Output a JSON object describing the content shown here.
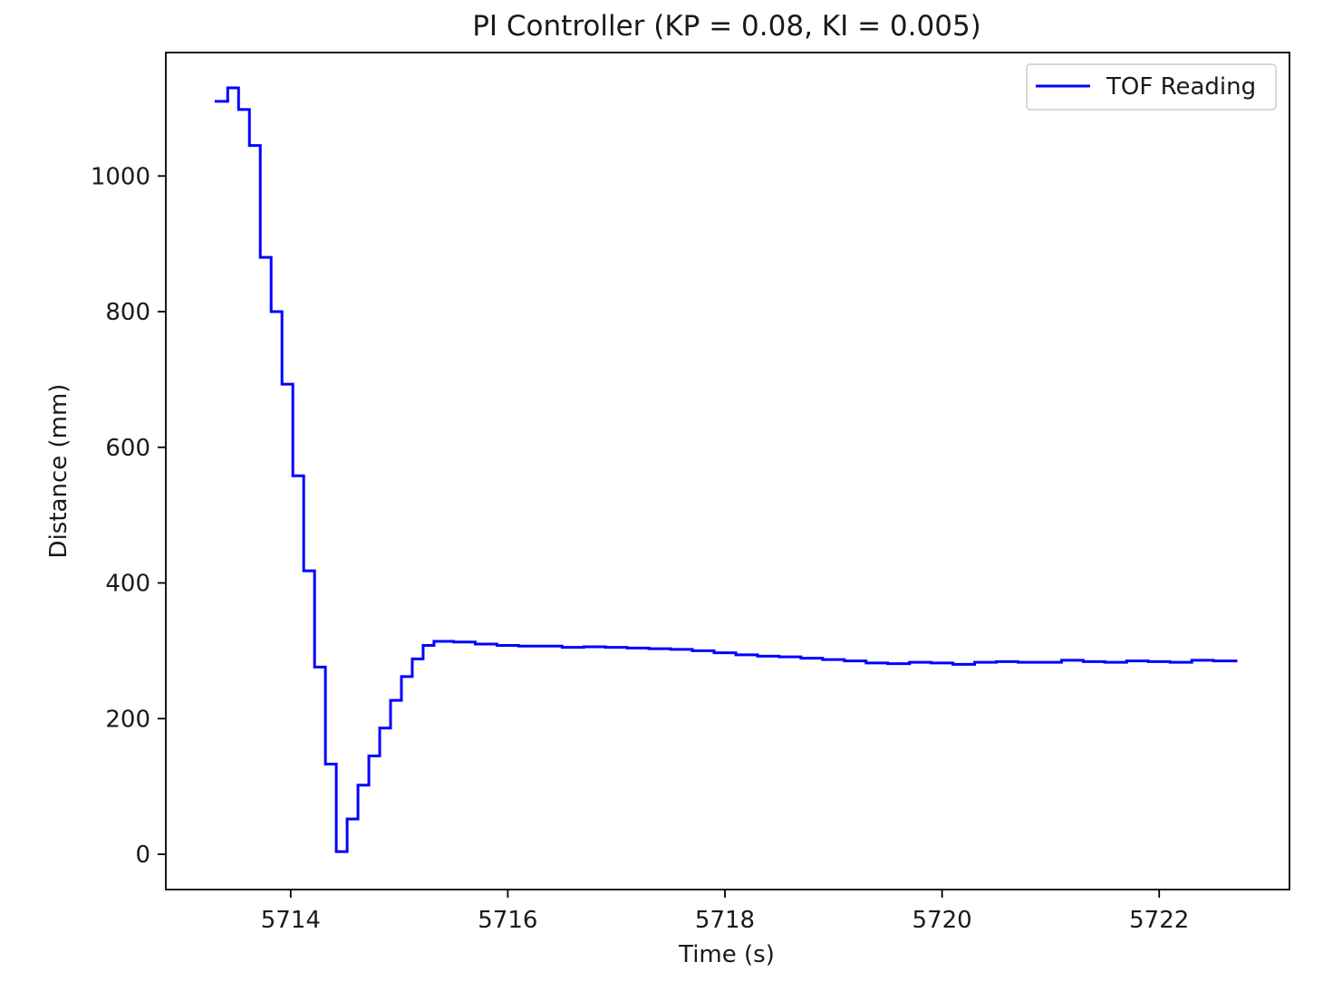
{
  "chart_data": {
    "type": "line",
    "title": "PI Controller (KP = 0.08, KI = 0.005)",
    "xlabel": "Time (s)",
    "ylabel": "Distance (mm)",
    "xlim": [
      5712.85,
      5723.2
    ],
    "ylim": [
      -52,
      1182
    ],
    "xticks": [
      5714,
      5716,
      5718,
      5720,
      5722
    ],
    "yticks": [
      0,
      200,
      400,
      600,
      800,
      1000
    ],
    "grid": false,
    "legend_position": "upper right",
    "step_line": true,
    "series": [
      {
        "name": "TOF Reading",
        "color": "#0000ff",
        "x": [
          5713.3,
          5713.42,
          5713.52,
          5713.62,
          5713.72,
          5713.82,
          5713.92,
          5714.02,
          5714.12,
          5714.22,
          5714.32,
          5714.42,
          5714.52,
          5714.62,
          5714.72,
          5714.82,
          5714.92,
          5715.02,
          5715.12,
          5715.22,
          5715.32,
          5715.5,
          5715.7,
          5715.9,
          5716.1,
          5716.3,
          5716.5,
          5716.7,
          5716.9,
          5717.1,
          5717.3,
          5717.5,
          5717.7,
          5717.9,
          5718.1,
          5718.3,
          5718.5,
          5718.7,
          5718.9,
          5719.1,
          5719.3,
          5719.5,
          5719.7,
          5719.9,
          5720.1,
          5720.3,
          5720.5,
          5720.7,
          5720.9,
          5721.1,
          5721.3,
          5721.5,
          5721.7,
          5721.9,
          5722.1,
          5722.3,
          5722.5,
          5722.72
        ],
        "y": [
          1110,
          1130,
          1098,
          1045,
          880,
          800,
          693,
          558,
          418,
          276,
          133,
          4,
          52,
          102,
          145,
          186,
          227,
          262,
          288,
          308,
          314,
          313,
          310,
          308,
          307,
          307,
          305,
          306,
          305,
          304,
          303,
          302,
          300,
          297,
          294,
          292,
          291,
          289,
          287,
          285,
          282,
          281,
          283,
          282,
          280,
          283,
          284,
          283,
          283,
          286,
          284,
          283,
          285,
          284,
          283,
          286,
          285,
          285
        ]
      }
    ]
  }
}
